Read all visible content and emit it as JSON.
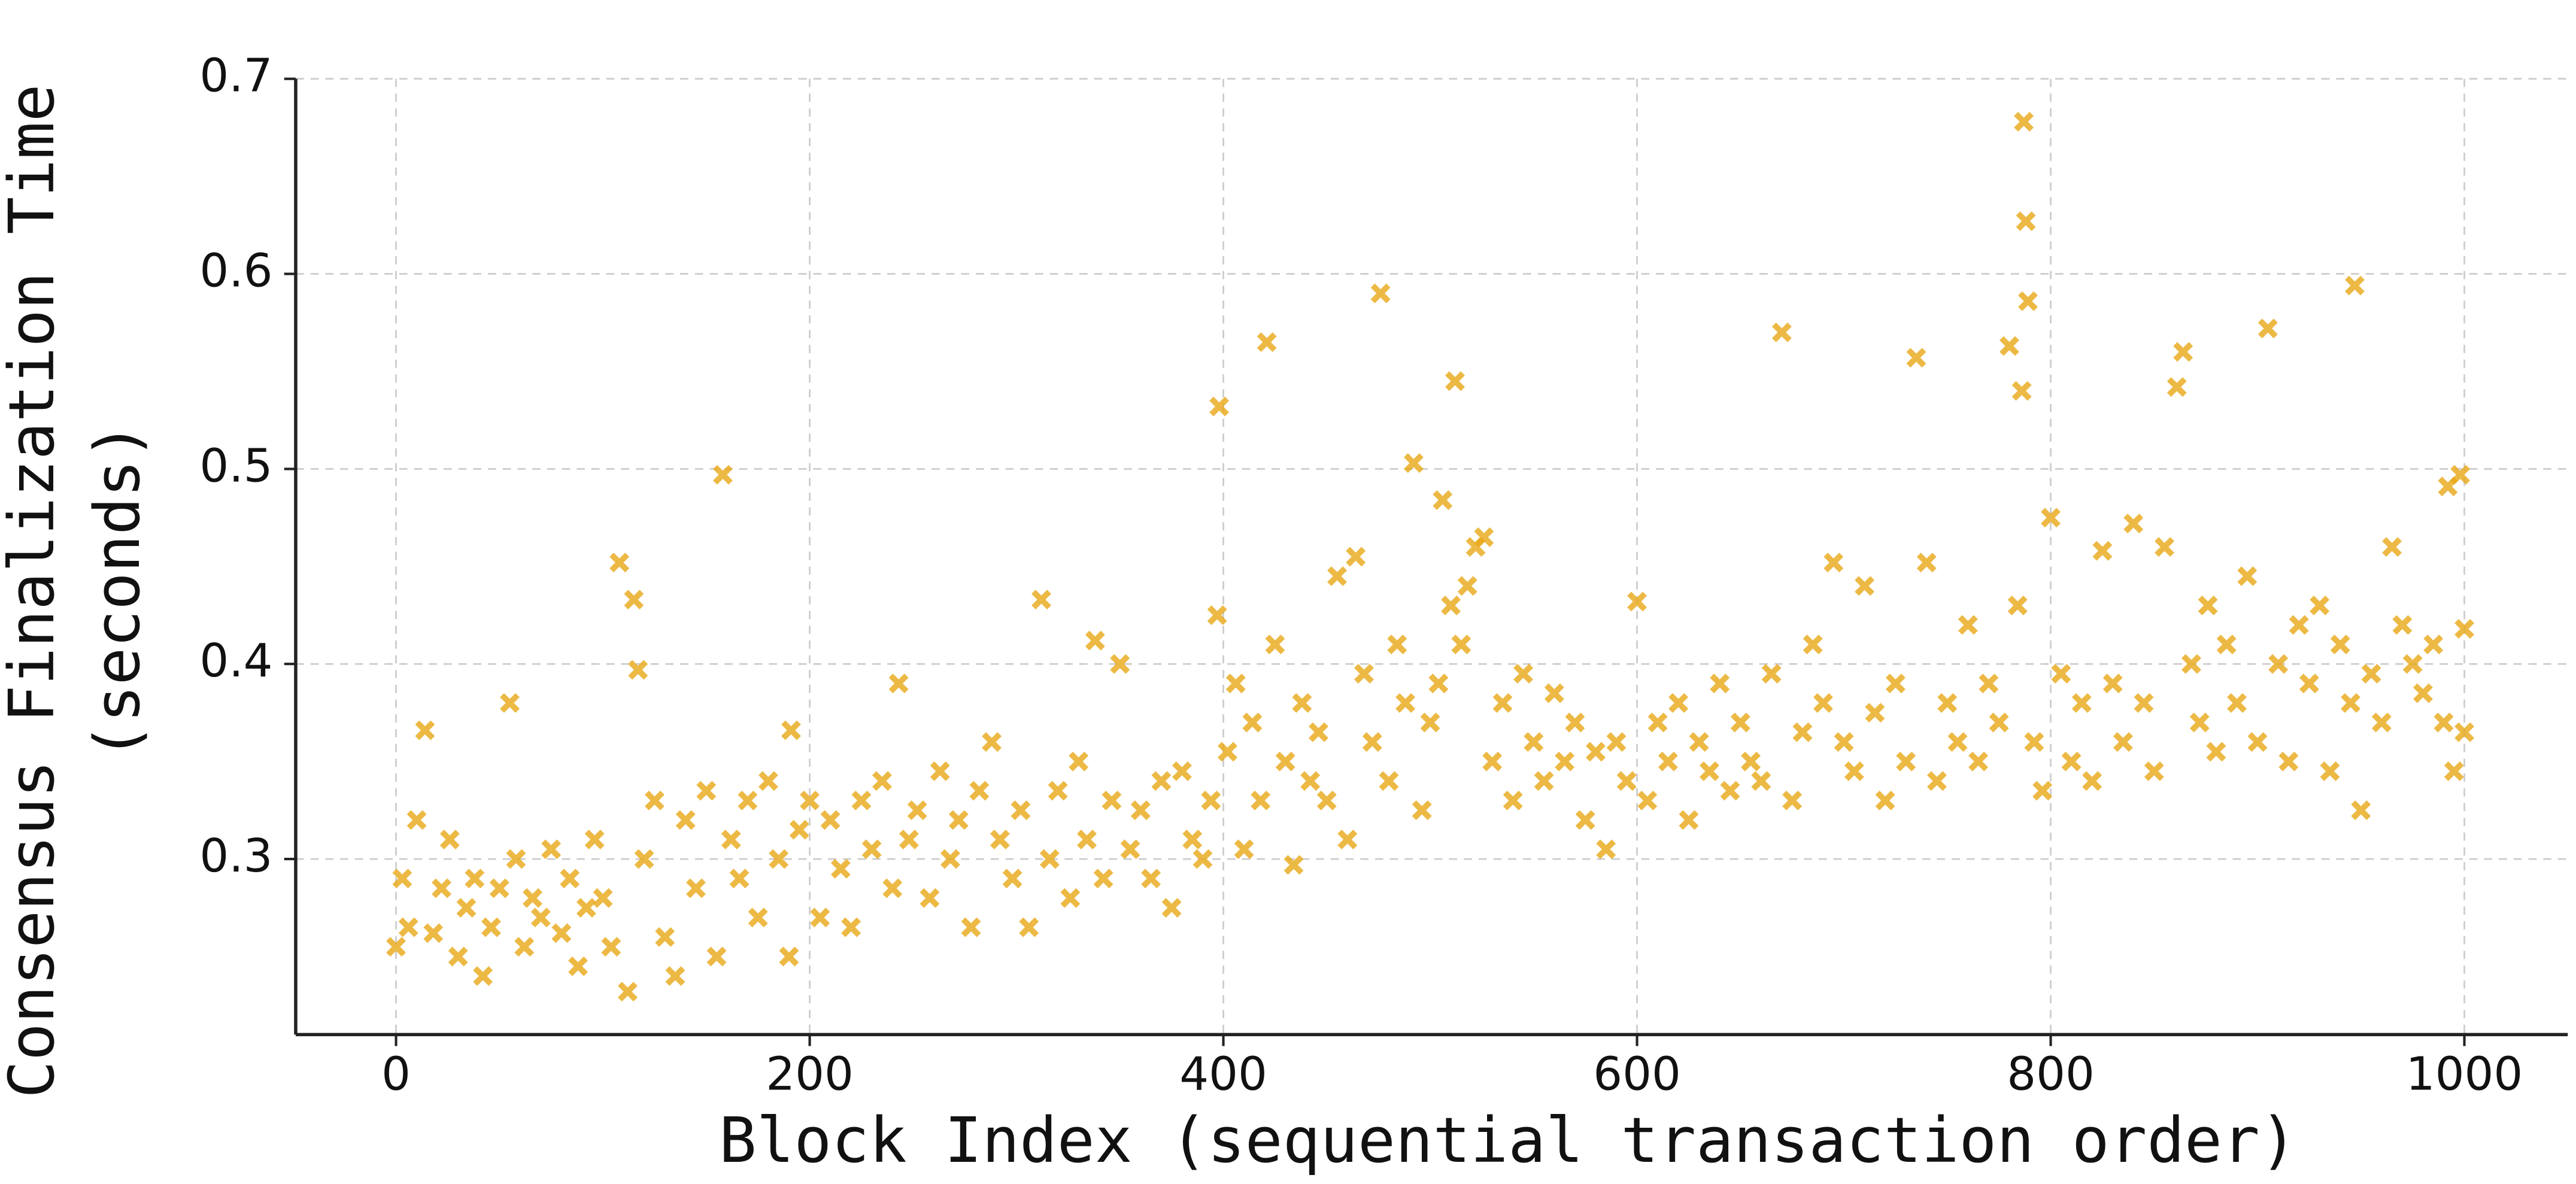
{
  "chart_data": {
    "type": "scatter",
    "xlabel": "Block Index (sequential transaction order)",
    "ylabel": [
      "Consensus Finalization Time",
      "(seconds)"
    ],
    "color": "#e8a817",
    "grid": true,
    "xlim": [
      -48.5,
      1050
    ],
    "ylim": [
      0.21,
      0.7
    ],
    "xticks": [
      0,
      200,
      400,
      600,
      800,
      1000
    ],
    "yticks": [
      0.3,
      0.4,
      0.5,
      0.6,
      0.7
    ],
    "x": [
      0,
      3,
      6,
      10,
      14,
      18,
      22,
      26,
      30,
      34,
      38,
      42,
      46,
      50,
      55,
      58,
      62,
      66,
      70,
      75,
      80,
      84,
      88,
      92,
      96,
      100,
      104,
      108,
      112,
      115,
      117,
      120,
      125,
      130,
      135,
      140,
      145,
      150,
      155,
      158,
      162,
      166,
      170,
      175,
      180,
      185,
      190,
      191,
      195,
      200,
      205,
      210,
      215,
      220,
      225,
      230,
      235,
      240,
      243,
      248,
      252,
      258,
      263,
      268,
      272,
      278,
      282,
      288,
      292,
      298,
      302,
      306,
      312,
      316,
      320,
      326,
      330,
      334,
      338,
      342,
      346,
      350,
      355,
      360,
      365,
      370,
      375,
      380,
      385,
      390,
      394,
      397,
      398,
      402,
      406,
      410,
      414,
      418,
      421,
      425,
      430,
      434,
      438,
      442,
      446,
      450,
      455,
      460,
      464,
      468,
      472,
      476,
      480,
      484,
      488,
      492,
      496,
      500,
      504,
      506,
      510,
      512,
      515,
      518,
      522,
      526,
      530,
      535,
      540,
      545,
      550,
      555,
      560,
      565,
      570,
      575,
      580,
      585,
      590,
      595,
      600,
      605,
      610,
      615,
      620,
      625,
      630,
      635,
      640,
      645,
      650,
      655,
      660,
      665,
      670,
      675,
      680,
      685,
      690,
      695,
      700,
      705,
      710,
      715,
      720,
      725,
      730,
      735,
      740,
      745,
      750,
      755,
      760,
      765,
      770,
      775,
      780,
      784,
      786,
      787,
      788,
      789,
      792,
      796,
      800,
      805,
      810,
      815,
      820,
      825,
      830,
      835,
      840,
      845,
      850,
      855,
      861,
      864,
      868,
      872,
      876,
      880,
      885,
      890,
      895,
      900,
      905,
      910,
      915,
      920,
      925,
      930,
      935,
      940,
      945,
      947,
      950,
      955,
      960,
      965,
      970,
      975,
      980,
      985,
      990,
      992,
      995,
      998,
      1000,
      1000
    ],
    "values": [
      0.255,
      0.29,
      0.265,
      0.32,
      0.366,
      0.262,
      0.285,
      0.31,
      0.25,
      0.275,
      0.29,
      0.24,
      0.265,
      0.285,
      0.38,
      0.3,
      0.255,
      0.28,
      0.27,
      0.305,
      0.262,
      0.29,
      0.245,
      0.275,
      0.31,
      0.28,
      0.255,
      0.452,
      0.232,
      0.433,
      0.397,
      0.3,
      0.33,
      0.26,
      0.24,
      0.32,
      0.285,
      0.335,
      0.25,
      0.497,
      0.31,
      0.29,
      0.33,
      0.27,
      0.34,
      0.3,
      0.25,
      0.366,
      0.315,
      0.33,
      0.27,
      0.32,
      0.295,
      0.265,
      0.33,
      0.305,
      0.34,
      0.285,
      0.39,
      0.31,
      0.325,
      0.28,
      0.345,
      0.3,
      0.32,
      0.265,
      0.335,
      0.36,
      0.31,
      0.29,
      0.325,
      0.265,
      0.433,
      0.3,
      0.335,
      0.28,
      0.35,
      0.31,
      0.412,
      0.29,
      0.33,
      0.4,
      0.305,
      0.325,
      0.29,
      0.34,
      0.275,
      0.345,
      0.31,
      0.3,
      0.33,
      0.425,
      0.532,
      0.355,
      0.39,
      0.305,
      0.37,
      0.33,
      0.565,
      0.41,
      0.35,
      0.297,
      0.38,
      0.34,
      0.365,
      0.33,
      0.445,
      0.31,
      0.455,
      0.395,
      0.36,
      0.59,
      0.34,
      0.41,
      0.38,
      0.503,
      0.325,
      0.37,
      0.39,
      0.484,
      0.43,
      0.545,
      0.41,
      0.44,
      0.46,
      0.465,
      0.35,
      0.38,
      0.33,
      0.395,
      0.36,
      0.34,
      0.385,
      0.35,
      0.37,
      0.32,
      0.355,
      0.305,
      0.36,
      0.34,
      0.432,
      0.33,
      0.37,
      0.35,
      0.38,
      0.32,
      0.36,
      0.345,
      0.39,
      0.335,
      0.37,
      0.35,
      0.34,
      0.395,
      0.57,
      0.33,
      0.365,
      0.41,
      0.38,
      0.452,
      0.36,
      0.345,
      0.44,
      0.375,
      0.33,
      0.39,
      0.35,
      0.557,
      0.452,
      0.34,
      0.38,
      0.36,
      0.42,
      0.35,
      0.39,
      0.37,
      0.563,
      0.43,
      0.54,
      0.678,
      0.627,
      0.586,
      0.36,
      0.335,
      0.475,
      0.395,
      0.35,
      0.38,
      0.34,
      0.458,
      0.39,
      0.36,
      0.472,
      0.38,
      0.345,
      0.46,
      0.542,
      0.56,
      0.4,
      0.37,
      0.43,
      0.355,
      0.41,
      0.38,
      0.445,
      0.36,
      0.572,
      0.4,
      0.35,
      0.42,
      0.39,
      0.43,
      0.345,
      0.41,
      0.38,
      0.594,
      0.325,
      0.395,
      0.37,
      0.46,
      0.42,
      0.4,
      0.385,
      0.41,
      0.37,
      0.491,
      0.345,
      0.497,
      0.418,
      0.365
    ]
  }
}
